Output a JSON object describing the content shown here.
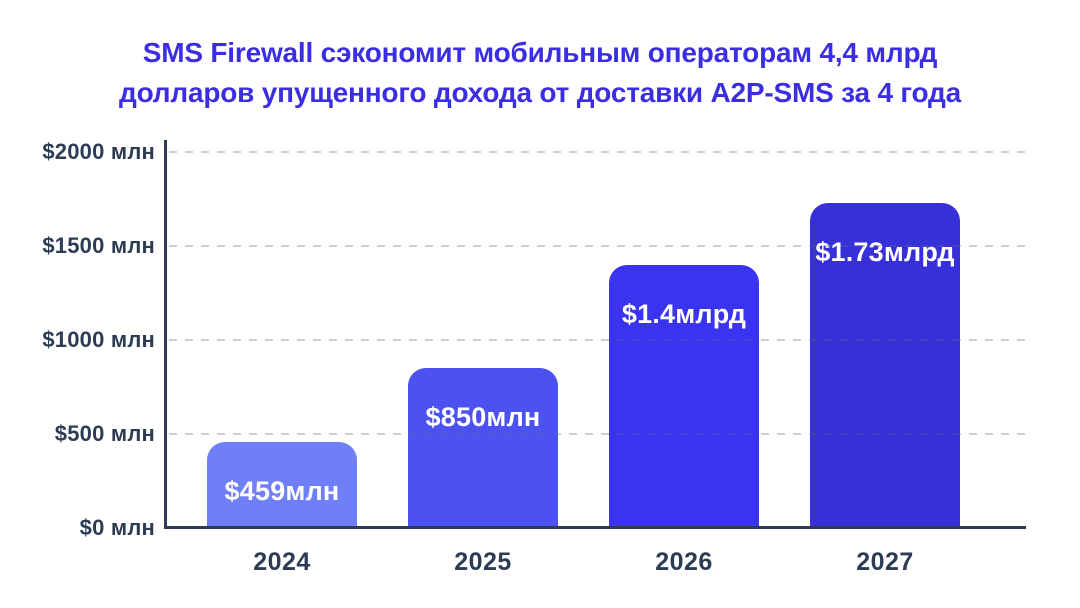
{
  "title": {
    "line1": "SMS Firewall сэкономит мобильным операторам 4,4 млрд",
    "line2": "долларов упущенного дохода от доставки A2P-SMS за 4 года",
    "color": "#3B2EE2"
  },
  "chart_data": {
    "type": "bar",
    "title": "SMS Firewall сэкономит мобильным операторам 4,4 млрд долларов упущенного дохода от доставки A2P-SMS за 4 года",
    "categories": [
      "2024",
      "2025",
      "2026",
      "2027"
    ],
    "values": [
      459,
      850,
      1400,
      1730
    ],
    "unit": "$ млн",
    "bar_labels": [
      "$459млн",
      "$850млн",
      "$1.4млрд",
      "$1.73млрд"
    ],
    "bar_colors": [
      "#6F80F6",
      "#4C52F2",
      "#3A33F0",
      "#372FD8"
    ],
    "y_ticks": [
      {
        "value": 0,
        "label": "$0 млн"
      },
      {
        "value": 500,
        "label": "$500 млн"
      },
      {
        "value": 1000,
        "label": "$1000 млн"
      },
      {
        "value": 1500,
        "label": "$1500 млн"
      },
      {
        "value": 2000,
        "label": "$2000 млн"
      }
    ],
    "ylim": [
      0,
      2000
    ],
    "xlabel": "",
    "ylabel": "",
    "grid": "horizontal-dashed",
    "legend": "none"
  },
  "colors": {
    "axis": "#2E3B50",
    "tick_label": "#2D3C55",
    "grid": "#D6D9DE",
    "value_label": "#FFFFFF",
    "background": "#FFFFFF"
  }
}
